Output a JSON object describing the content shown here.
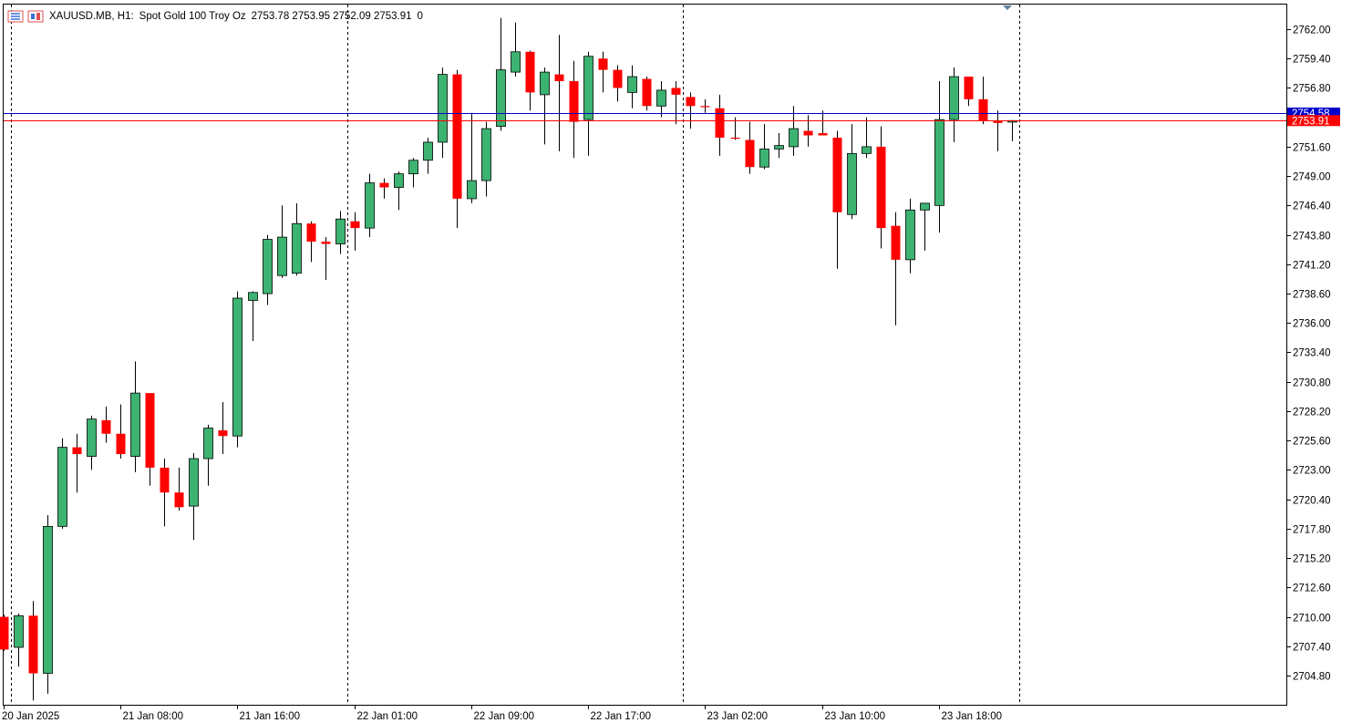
{
  "header": {
    "symbol": "XAUUSD.MB, H1:",
    "description": "Spot Gold 100 Troy Oz",
    "ohlc": "2753.78 2753.95 2752.09 2753.91",
    "extra": "0",
    "icons": [
      "indicator-list-icon",
      "chart-window-icon"
    ]
  },
  "colors": {
    "up": "#3cb371",
    "down": "#ff0000",
    "wick": "#000000",
    "ask_line": "#0000cd",
    "bid_line": "#ff0000",
    "separator": "#000000",
    "background": "#ffffff"
  },
  "chart_data": {
    "type": "candlestick",
    "timeframe": "H1",
    "y_axis": {
      "ylim": [
        2702.4,
        2764.4
      ],
      "ticks": [
        2762.0,
        2759.4,
        2756.8,
        2754.2,
        2751.6,
        2749.0,
        2746.4,
        2743.8,
        2741.2,
        2738.6,
        2736.0,
        2733.4,
        2730.8,
        2728.2,
        2725.6,
        2723.0,
        2720.4,
        2717.8,
        2715.2,
        2712.6,
        2710.0,
        2707.4,
        2704.8
      ],
      "tick_labels": [
        "2762.00",
        "2759.40",
        "2756.80",
        "",
        "2751.60",
        "2749.00",
        "2746.40",
        "2743.80",
        "2741.20",
        "2738.60",
        "2736.00",
        "2733.40",
        "2730.80",
        "2728.20",
        "2725.60",
        "2723.00",
        "2720.40",
        "2717.80",
        "2715.20",
        "2712.60",
        "2710.00",
        "2707.40",
        "2704.80"
      ]
    },
    "x_axis": {
      "labels": [
        {
          "text": "20 Jan 2025",
          "index": 0
        },
        {
          "text": "21 Jan 08:00",
          "index": 8
        },
        {
          "text": "21 Jan 16:00",
          "index": 16
        },
        {
          "text": "22 Jan 01:00",
          "index": 24
        },
        {
          "text": "22 Jan 09:00",
          "index": 32
        },
        {
          "text": "22 Jan 17:00",
          "index": 40
        },
        {
          "text": "23 Jan 02:00",
          "index": 48
        },
        {
          "text": "23 Jan 10:00",
          "index": 56
        },
        {
          "text": "23 Jan 18:00",
          "index": 64
        }
      ]
    },
    "day_separators": [
      0.5,
      23.5,
      46.5,
      69.5
    ],
    "price_lines": [
      {
        "name": "ask",
        "value": 2754.58,
        "label": "2754.58"
      },
      {
        "name": "bid",
        "value": 2753.91,
        "label": "2753.91"
      }
    ],
    "candles": [
      [
        2710.0,
        2710.2,
        2707.0,
        2707.1
      ],
      [
        2707.3,
        2710.3,
        2705.6,
        2710.1
      ],
      [
        2710.1,
        2711.4,
        2702.6,
        2705.0
      ],
      [
        2705.0,
        2719.0,
        2703.2,
        2718.0
      ],
      [
        2718.0,
        2725.8,
        2717.8,
        2725.0
      ],
      [
        2725.0,
        2726.2,
        2721.0,
        2724.4
      ],
      [
        2724.2,
        2727.8,
        2723.0,
        2727.5
      ],
      [
        2727.4,
        2728.6,
        2725.4,
        2726.2
      ],
      [
        2726.2,
        2728.8,
        2724.0,
        2724.4
      ],
      [
        2724.2,
        2732.6,
        2722.8,
        2729.8
      ],
      [
        2729.8,
        2729.8,
        2721.6,
        2723.2
      ],
      [
        2723.2,
        2724.0,
        2718.0,
        2721.0
      ],
      [
        2721.0,
        2723.2,
        2719.4,
        2719.7
      ],
      [
        2719.8,
        2724.5,
        2716.8,
        2724.0
      ],
      [
        2724.0,
        2727.0,
        2721.6,
        2726.7
      ],
      [
        2726.5,
        2729.0,
        2724.4,
        2726.0
      ],
      [
        2726.0,
        2738.8,
        2725.0,
        2738.2
      ],
      [
        2738.0,
        2738.8,
        2734.4,
        2738.7
      ],
      [
        2738.6,
        2743.8,
        2737.6,
        2743.4
      ],
      [
        2740.2,
        2746.4,
        2740.0,
        2743.6
      ],
      [
        2740.4,
        2746.6,
        2740.2,
        2744.8
      ],
      [
        2744.8,
        2745.0,
        2741.4,
        2743.2
      ],
      [
        2743.2,
        2743.6,
        2739.8,
        2743.0
      ],
      [
        2743.0,
        2745.9,
        2742.1,
        2745.2
      ],
      [
        2745.0,
        2745.8,
        2742.4,
        2744.4
      ],
      [
        2744.4,
        2749.2,
        2743.6,
        2748.4
      ],
      [
        2748.4,
        2748.8,
        2747.0,
        2748.0
      ],
      [
        2748.0,
        2749.4,
        2746.0,
        2749.2
      ],
      [
        2749.2,
        2750.6,
        2748.0,
        2750.4
      ],
      [
        2750.4,
        2752.4,
        2749.2,
        2752.0
      ],
      [
        2752.0,
        2758.6,
        2750.6,
        2758.0
      ],
      [
        2758.0,
        2758.4,
        2744.4,
        2747.0
      ],
      [
        2747.0,
        2754.6,
        2746.6,
        2748.6
      ],
      [
        2748.6,
        2753.8,
        2747.2,
        2753.2
      ],
      [
        2753.4,
        2763.0,
        2753.0,
        2758.4
      ],
      [
        2758.2,
        2762.6,
        2757.8,
        2760.0
      ],
      [
        2760.0,
        2760.1,
        2754.8,
        2756.4
      ],
      [
        2756.2,
        2758.6,
        2751.8,
        2758.2
      ],
      [
        2758.0,
        2761.5,
        2751.2,
        2757.4
      ],
      [
        2757.4,
        2759.2,
        2750.6,
        2753.8
      ],
      [
        2754.0,
        2760.0,
        2750.8,
        2759.6
      ],
      [
        2759.4,
        2760.0,
        2756.4,
        2758.4
      ],
      [
        2758.4,
        2758.8,
        2755.6,
        2756.8
      ],
      [
        2756.4,
        2758.8,
        2755.0,
        2757.8
      ],
      [
        2757.6,
        2757.8,
        2754.8,
        2755.2
      ],
      [
        2755.2,
        2757.4,
        2754.2,
        2756.6
      ],
      [
        2756.8,
        2757.4,
        2753.6,
        2756.2
      ],
      [
        2756.0,
        2756.4,
        2753.2,
        2755.2
      ],
      [
        2755.2,
        2755.8,
        2754.6,
        2755.1
      ],
      [
        2755.0,
        2756.2,
        2750.8,
        2752.4
      ],
      [
        2752.4,
        2754.2,
        2752.2,
        2752.3
      ],
      [
        2752.2,
        2753.8,
        2749.2,
        2749.8
      ],
      [
        2749.8,
        2753.6,
        2749.6,
        2751.4
      ],
      [
        2751.4,
        2752.8,
        2750.6,
        2751.7
      ],
      [
        2751.6,
        2755.2,
        2750.8,
        2753.2
      ],
      [
        2753.0,
        2754.4,
        2751.6,
        2752.6
      ],
      [
        2752.8,
        2754.8,
        2752.6,
        2752.6
      ],
      [
        2752.4,
        2753.0,
        2740.8,
        2745.8
      ],
      [
        2745.6,
        2753.6,
        2745.2,
        2751.0
      ],
      [
        2751.0,
        2754.2,
        2750.6,
        2751.6
      ],
      [
        2751.6,
        2753.4,
        2742.6,
        2744.4
      ],
      [
        2744.6,
        2745.8,
        2735.8,
        2741.6
      ],
      [
        2741.6,
        2747.0,
        2740.4,
        2746.0
      ],
      [
        2746.0,
        2746.6,
        2742.4,
        2746.6
      ],
      [
        2746.4,
        2757.4,
        2744.0,
        2754.0
      ],
      [
        2754.0,
        2758.6,
        2752.0,
        2757.8
      ],
      [
        2757.8,
        2757.8,
        2755.2,
        2755.8
      ],
      [
        2755.8,
        2757.8,
        2753.6,
        2753.9
      ],
      [
        2753.9,
        2754.8,
        2751.2,
        2753.7
      ],
      [
        2753.78,
        2753.95,
        2752.09,
        2753.91
      ]
    ]
  }
}
